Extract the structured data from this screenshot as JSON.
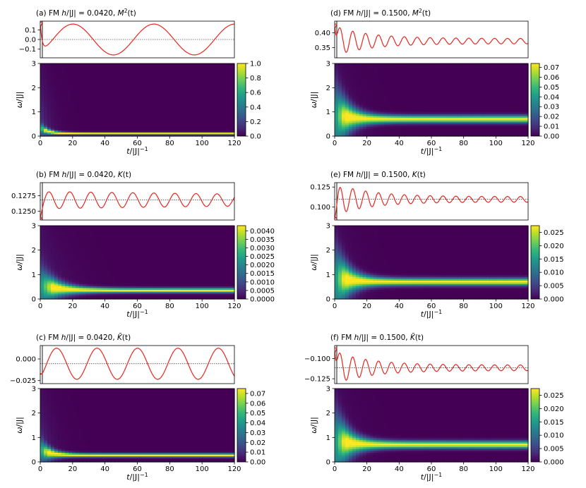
{
  "chart_data": [
    {
      "id": "a",
      "type": "line",
      "title": "(a) FM h/|J| = 0.0420, M²(t)",
      "title_parts": {
        "prefix": "(a) FM ",
        "h": "h",
        "mid": "/|J| = 0.0420, ",
        "q": "M",
        "sup": "2",
        "tail": "(t)"
      },
      "xlim": [
        0,
        120
      ],
      "ylim": [
        -0.19,
        0.19
      ],
      "yticks": [
        0.1,
        0.0,
        -0.1
      ],
      "ytick_labels": [
        "0.1",
        "0.0",
        "−0.1"
      ],
      "reference_line": 0.0,
      "series": [
        {
          "color": "#e8261f",
          "model": {
            "start": 0.18,
            "mean": 0.0,
            "amp": 0.16,
            "period": 50.0,
            "decay": 0.0
          }
        }
      ]
    },
    {
      "id": "a_map",
      "type": "heatmap",
      "xlabel": "t/|J|⁻¹",
      "ylabel": "ω/|J|",
      "xlim": [
        0,
        120
      ],
      "ylim": [
        0,
        3
      ],
      "xticks": [
        0,
        20,
        40,
        60,
        80,
        100,
        120
      ],
      "yticks": [
        0,
        1,
        2,
        3
      ],
      "colormap": "viridis",
      "colorbar_range": [
        0.0,
        1.0
      ],
      "colorbar_ticks": [
        "0.0",
        "0.2",
        "0.4",
        "0.6",
        "0.8",
        "1.0"
      ],
      "model": {
        "omega_peak": 0.1,
        "width": 0.045,
        "broad": 0.15,
        "settle": 5
      }
    },
    {
      "id": "b",
      "type": "line",
      "title": "(b) FM h/|J| = 0.0420, K(t)",
      "title_parts": {
        "prefix": "(b) FM ",
        "h": "h",
        "mid": "/|J| = 0.0420, ",
        "q": "K",
        "sup": "",
        "tail": "(t)"
      },
      "xlim": [
        0,
        120
      ],
      "ylim": [
        0.1236,
        0.1296
      ],
      "yticks": [
        0.1275,
        0.125
      ],
      "ytick_labels": [
        "0.1275",
        "0.1250"
      ],
      "reference_line": 0.1268,
      "series": [
        {
          "color": "#e8261f",
          "model": {
            "start": 0.1238,
            "mean": 0.1268,
            "amp": 0.0014,
            "period": 13.0,
            "decay": 0.003
          }
        }
      ]
    },
    {
      "id": "b_map",
      "type": "heatmap",
      "xlabel": "t/|J|⁻¹",
      "ylabel": "ω/|J|",
      "xlim": [
        0,
        120
      ],
      "ylim": [
        0,
        3
      ],
      "xticks": [
        0,
        20,
        40,
        60,
        80,
        100,
        120
      ],
      "yticks": [
        0,
        1,
        2,
        3
      ],
      "colormap": "viridis",
      "colorbar_range": [
        0.0,
        0.0043
      ],
      "colorbar_ticks": [
        "0.0000",
        "0.0005",
        "0.0010",
        "0.0015",
        "0.0020",
        "0.0025",
        "0.0030",
        "0.0035",
        "0.0040"
      ],
      "model": {
        "omega_peak": 0.35,
        "width": 0.09,
        "broad": 0.6,
        "settle": 10
      }
    },
    {
      "id": "c",
      "type": "line",
      "title": "(c) FM h/|J| = 0.0420, K̃(t)",
      "title_parts": {
        "prefix": "(c) FM ",
        "h": "h",
        "mid": "/|J| = 0.0420, ",
        "q": "K̃",
        "sup": "",
        "tail": "(t)"
      },
      "xlim": [
        0,
        120
      ],
      "ylim": [
        -0.0285,
        0.0155
      ],
      "yticks": [
        0.0,
        -0.025
      ],
      "ytick_labels": [
        "0.000",
        "−0.025"
      ],
      "reference_line": -0.0055,
      "series": [
        {
          "color": "#e8261f",
          "model": {
            "start": -0.017,
            "mean": -0.0055,
            "amp": 0.018,
            "period": 25.0,
            "decay": 0.0
          }
        }
      ]
    },
    {
      "id": "c_map",
      "type": "heatmap",
      "xlabel": "t/|J|⁻¹",
      "ylabel": "ω/|J|",
      "xlim": [
        0,
        120
      ],
      "ylim": [
        0,
        3
      ],
      "xticks": [
        0,
        20,
        40,
        60,
        80,
        100,
        120
      ],
      "yticks": [
        0,
        1,
        2,
        3
      ],
      "colormap": "viridis",
      "colorbar_range": [
        0.0,
        0.075
      ],
      "colorbar_ticks": [
        "0.00",
        "0.01",
        "0.02",
        "0.03",
        "0.04",
        "0.05",
        "0.06",
        "0.07"
      ],
      "model": {
        "omega_peak": 0.27,
        "width": 0.07,
        "broad": 0.35,
        "settle": 6
      }
    },
    {
      "id": "d",
      "type": "line",
      "title": "(d) FM h/|J| = 0.1500, M²(t)",
      "title_parts": {
        "prefix": "(d) FM ",
        "h": "h",
        "mid": "/|J| = 0.1500, ",
        "q": "M",
        "sup": "2",
        "tail": "(t)"
      },
      "xlim": [
        0,
        120
      ],
      "ylim": [
        0.315,
        0.44
      ],
      "yticks": [
        0.4,
        0.35
      ],
      "ytick_labels": [
        "0.40",
        "0.35"
      ],
      "reference_line": null,
      "series": [
        {
          "color": "#e8261f",
          "model": {
            "start": 0.43,
            "mean": 0.372,
            "amp": 0.05,
            "period": 8.0,
            "decay": 0.045,
            "floor": 0.009
          }
        }
      ]
    },
    {
      "id": "d_map",
      "type": "heatmap",
      "xlabel": "t/|J|⁻¹",
      "ylabel": "ω/|J|",
      "xlim": [
        0,
        120
      ],
      "ylim": [
        0,
        3
      ],
      "xticks": [
        0,
        20,
        40,
        60,
        80,
        100,
        120
      ],
      "yticks": [
        0,
        1,
        2,
        3
      ],
      "colormap": "viridis",
      "colorbar_range": [
        0.0,
        0.074
      ],
      "colorbar_ticks": [
        "0.00",
        "0.01",
        "0.02",
        "0.03",
        "0.04",
        "0.05",
        "0.06",
        "0.07"
      ],
      "model": {
        "omega_peak": 0.7,
        "width": 0.14,
        "broad": 1.1,
        "settle": 8
      }
    },
    {
      "id": "e",
      "type": "line",
      "title": "(e) FM h/|J| = 0.1500, K(t)",
      "title_parts": {
        "prefix": "(e) FM ",
        "h": "h",
        "mid": "/|J| = 0.1500, ",
        "q": "K",
        "sup": "",
        "tail": "(t)"
      },
      "xlim": [
        0,
        120
      ],
      "ylim": [
        0.0835,
        0.1305
      ],
      "yticks": [
        0.125,
        0.1
      ],
      "ytick_labels": [
        "0.125",
        "0.100"
      ],
      "reference_line": 0.1095,
      "series": [
        {
          "color": "#e8261f",
          "model": {
            "start": 0.086,
            "mean": 0.1095,
            "amp": 0.02,
            "period": 8.0,
            "decay": 0.045,
            "floor": 0.0035
          }
        }
      ]
    },
    {
      "id": "e_map",
      "type": "heatmap",
      "xlabel": "t/|J|⁻¹",
      "ylabel": "ω/|J|",
      "xlim": [
        0,
        120
      ],
      "ylim": [
        0,
        3
      ],
      "xticks": [
        0,
        20,
        40,
        60,
        80,
        100,
        120
      ],
      "yticks": [
        0,
        1,
        2,
        3
      ],
      "colormap": "viridis",
      "colorbar_range": [
        0.0,
        0.0275
      ],
      "colorbar_ticks": [
        "0.000",
        "0.005",
        "0.010",
        "0.015",
        "0.020",
        "0.025"
      ],
      "model": {
        "omega_peak": 0.7,
        "width": 0.14,
        "broad": 1.1,
        "settle": 8
      }
    },
    {
      "id": "f",
      "type": "line",
      "title": "(f) FM h/|J| = 0.1500, K̃(t)",
      "title_parts": {
        "prefix": "(f) FM ",
        "h": "h",
        "mid": "/|J| = 0.1500, ",
        "q": "K̃",
        "sup": "",
        "tail": "(t)"
      },
      "xlim": [
        0,
        120
      ],
      "ylim": [
        -0.131,
        -0.084
      ],
      "yticks": [
        -0.1,
        -0.125
      ],
      "ytick_labels": [
        "−0.100",
        "−0.125"
      ],
      "reference_line": -0.1115,
      "series": [
        {
          "color": "#e8261f",
          "model": {
            "start": -0.087,
            "mean": -0.1115,
            "amp": 0.02,
            "period": 8.0,
            "decay": 0.045,
            "floor": 0.0035
          }
        }
      ]
    },
    {
      "id": "f_map",
      "type": "heatmap",
      "xlabel": "t/|J|⁻¹",
      "ylabel": "ω/|J|",
      "xlim": [
        0,
        120
      ],
      "ylim": [
        0,
        3
      ],
      "xticks": [
        0,
        20,
        40,
        60,
        80,
        100,
        120
      ],
      "yticks": [
        0,
        1,
        2,
        3
      ],
      "colormap": "viridis",
      "colorbar_range": [
        0.0,
        0.0275
      ],
      "colorbar_ticks": [
        "0.000",
        "0.005",
        "0.010",
        "0.015",
        "0.020",
        "0.025"
      ],
      "model": {
        "omega_peak": 0.7,
        "width": 0.14,
        "broad": 1.1,
        "settle": 8
      }
    }
  ]
}
